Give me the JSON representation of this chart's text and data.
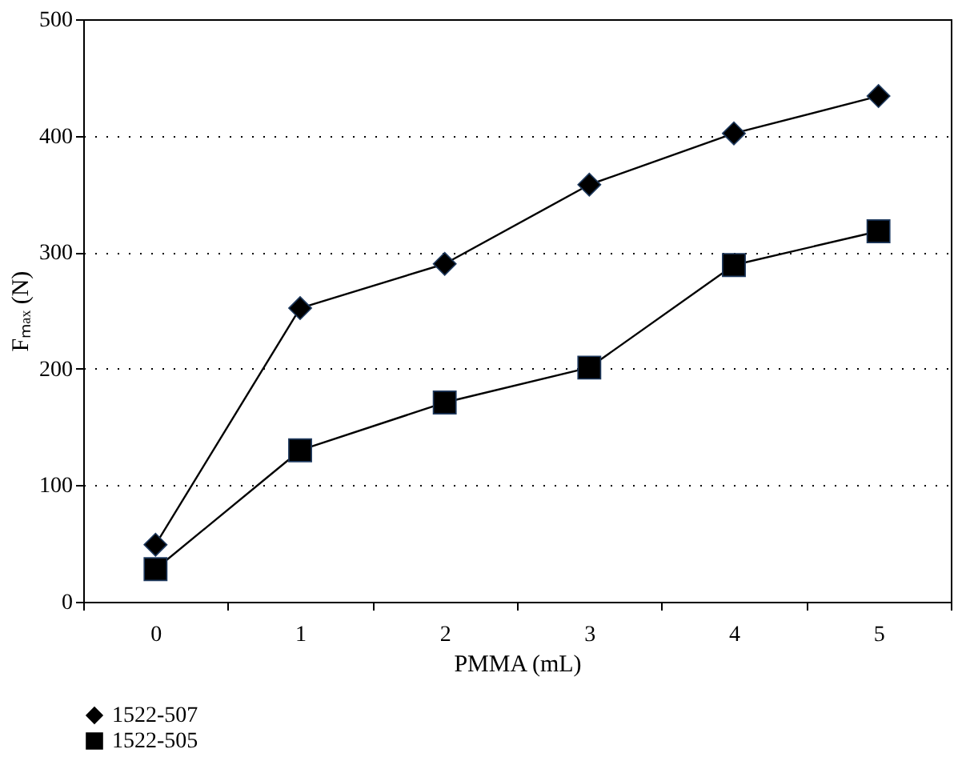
{
  "chart_data": {
    "type": "line",
    "xlabel": "PMMA (mL)",
    "ylabel": "Fₘₐₓ (N)",
    "categories": [
      "0",
      "1",
      "2",
      "3",
      "4",
      "5"
    ],
    "series": [
      {
        "name": "1522-507",
        "color": "#000000",
        "marker": "diamond",
        "values": [
          49,
          252,
          290,
          358,
          402,
          434
        ]
      },
      {
        "name": "1522-505",
        "color": "#000000",
        "marker": "square",
        "values": [
          28,
          130,
          171,
          201,
          289,
          318
        ]
      }
    ],
    "ylim": [
      0,
      500
    ],
    "yticks": [
      0,
      100,
      200,
      300,
      400,
      500
    ],
    "grid": "y",
    "legend": "bottom left",
    "line_style": "solid"
  }
}
